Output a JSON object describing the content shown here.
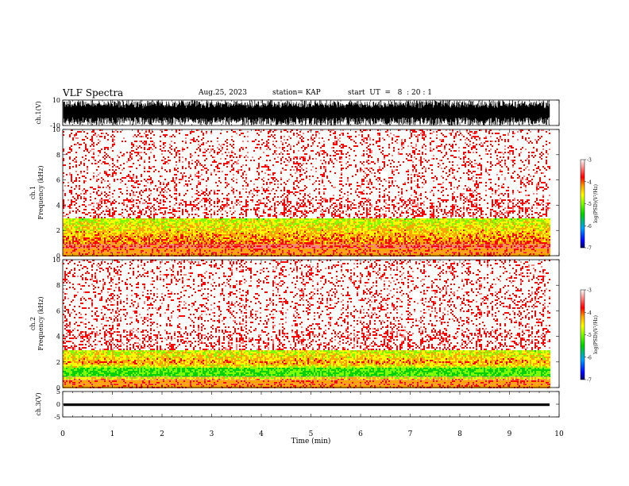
{
  "header": {
    "title": "VLF Spectra",
    "date": "Aug.25, 2023",
    "station": "station= KAP",
    "start": "start  UT  =   8  : 20 : 1"
  },
  "colors": {
    "colormap": [
      "#ffffff",
      "#ffd6d6",
      "#ff4d4d",
      "#ff0000",
      "#ffa500",
      "#ffff00",
      "#7fff00",
      "#00d000",
      "#00aaff",
      "#0000ff",
      "#000080"
    ],
    "trace": "#000000"
  },
  "chart_data": [
    {
      "type": "line",
      "panel": "ch1-waveform",
      "ylabel": "ch.1(V)",
      "ylim": [
        -10,
        10
      ],
      "yticks": [
        "10",
        "-10"
      ],
      "xlim": [
        0,
        10
      ],
      "description_values": {
        "amplitude_range_V": [
          -10,
          10
        ]
      }
    },
    {
      "type": "heatmap",
      "panel": "ch1-spectrogram",
      "ylabel": "ch.1\nFrequency (kHz)",
      "ylabel_line1": "ch.1",
      "ylabel_line2": "Frequency  (kHz)",
      "ylim": [
        0,
        10
      ],
      "yticks": [
        "0",
        "2",
        "4",
        "6",
        "8",
        "10"
      ],
      "xlim": [
        0,
        10
      ],
      "colorbar": {
        "label": "log(PSD)(V²/Hz)",
        "ticks": [
          "-3",
          "-4",
          "-5",
          "-6",
          "-7"
        ],
        "range": [
          -7,
          -3
        ]
      },
      "band_profile": [
        {
          "freq_kHz": 0.3,
          "level": -3.2
        },
        {
          "freq_kHz": 1.0,
          "level": -3.8
        },
        {
          "freq_kHz": 2.0,
          "level": -4.2
        },
        {
          "freq_kHz": 3.0,
          "level": -4.6
        },
        {
          "freq_kHz": 6.0,
          "level": -5.0
        },
        {
          "freq_kHz": 10.0,
          "level": -5.2
        }
      ]
    },
    {
      "type": "heatmap",
      "panel": "ch2-spectrogram",
      "ylabel_line1": "ch.2",
      "ylabel_line2": "Frequency  (kHz)",
      "ylim": [
        0,
        10
      ],
      "yticks": [
        "0",
        "2",
        "4",
        "6",
        "8",
        "10"
      ],
      "xlim": [
        0,
        10
      ],
      "colorbar": {
        "label": "log(PSD)(V²/Hz)",
        "ticks": [
          "-3",
          "-4",
          "-5",
          "-6",
          "-7"
        ],
        "range": [
          -7,
          -3
        ]
      },
      "band_profile": [
        {
          "freq_kHz": 0.3,
          "level": -3.3
        },
        {
          "freq_kHz": 1.2,
          "level": -5.2
        },
        {
          "freq_kHz": 2.0,
          "level": -4.0
        },
        {
          "freq_kHz": 3.0,
          "level": -4.6
        },
        {
          "freq_kHz": 6.0,
          "level": -5.0
        },
        {
          "freq_kHz": 10.0,
          "level": -5.2
        }
      ]
    },
    {
      "type": "line",
      "panel": "ch3-waveform",
      "ylabel": "ch.3(V)",
      "ylim": [
        -5,
        5
      ],
      "yticks": [
        "5",
        "0",
        "-5"
      ],
      "xlim": [
        0,
        10
      ],
      "xlabel": "Time  (min)",
      "xticks": [
        "0",
        "1",
        "2",
        "3",
        "4",
        "5",
        "6",
        "7",
        "8",
        "9",
        "10"
      ],
      "description_values": {
        "mean_V": -0.2,
        "amplitude_V": 0.5
      }
    }
  ]
}
